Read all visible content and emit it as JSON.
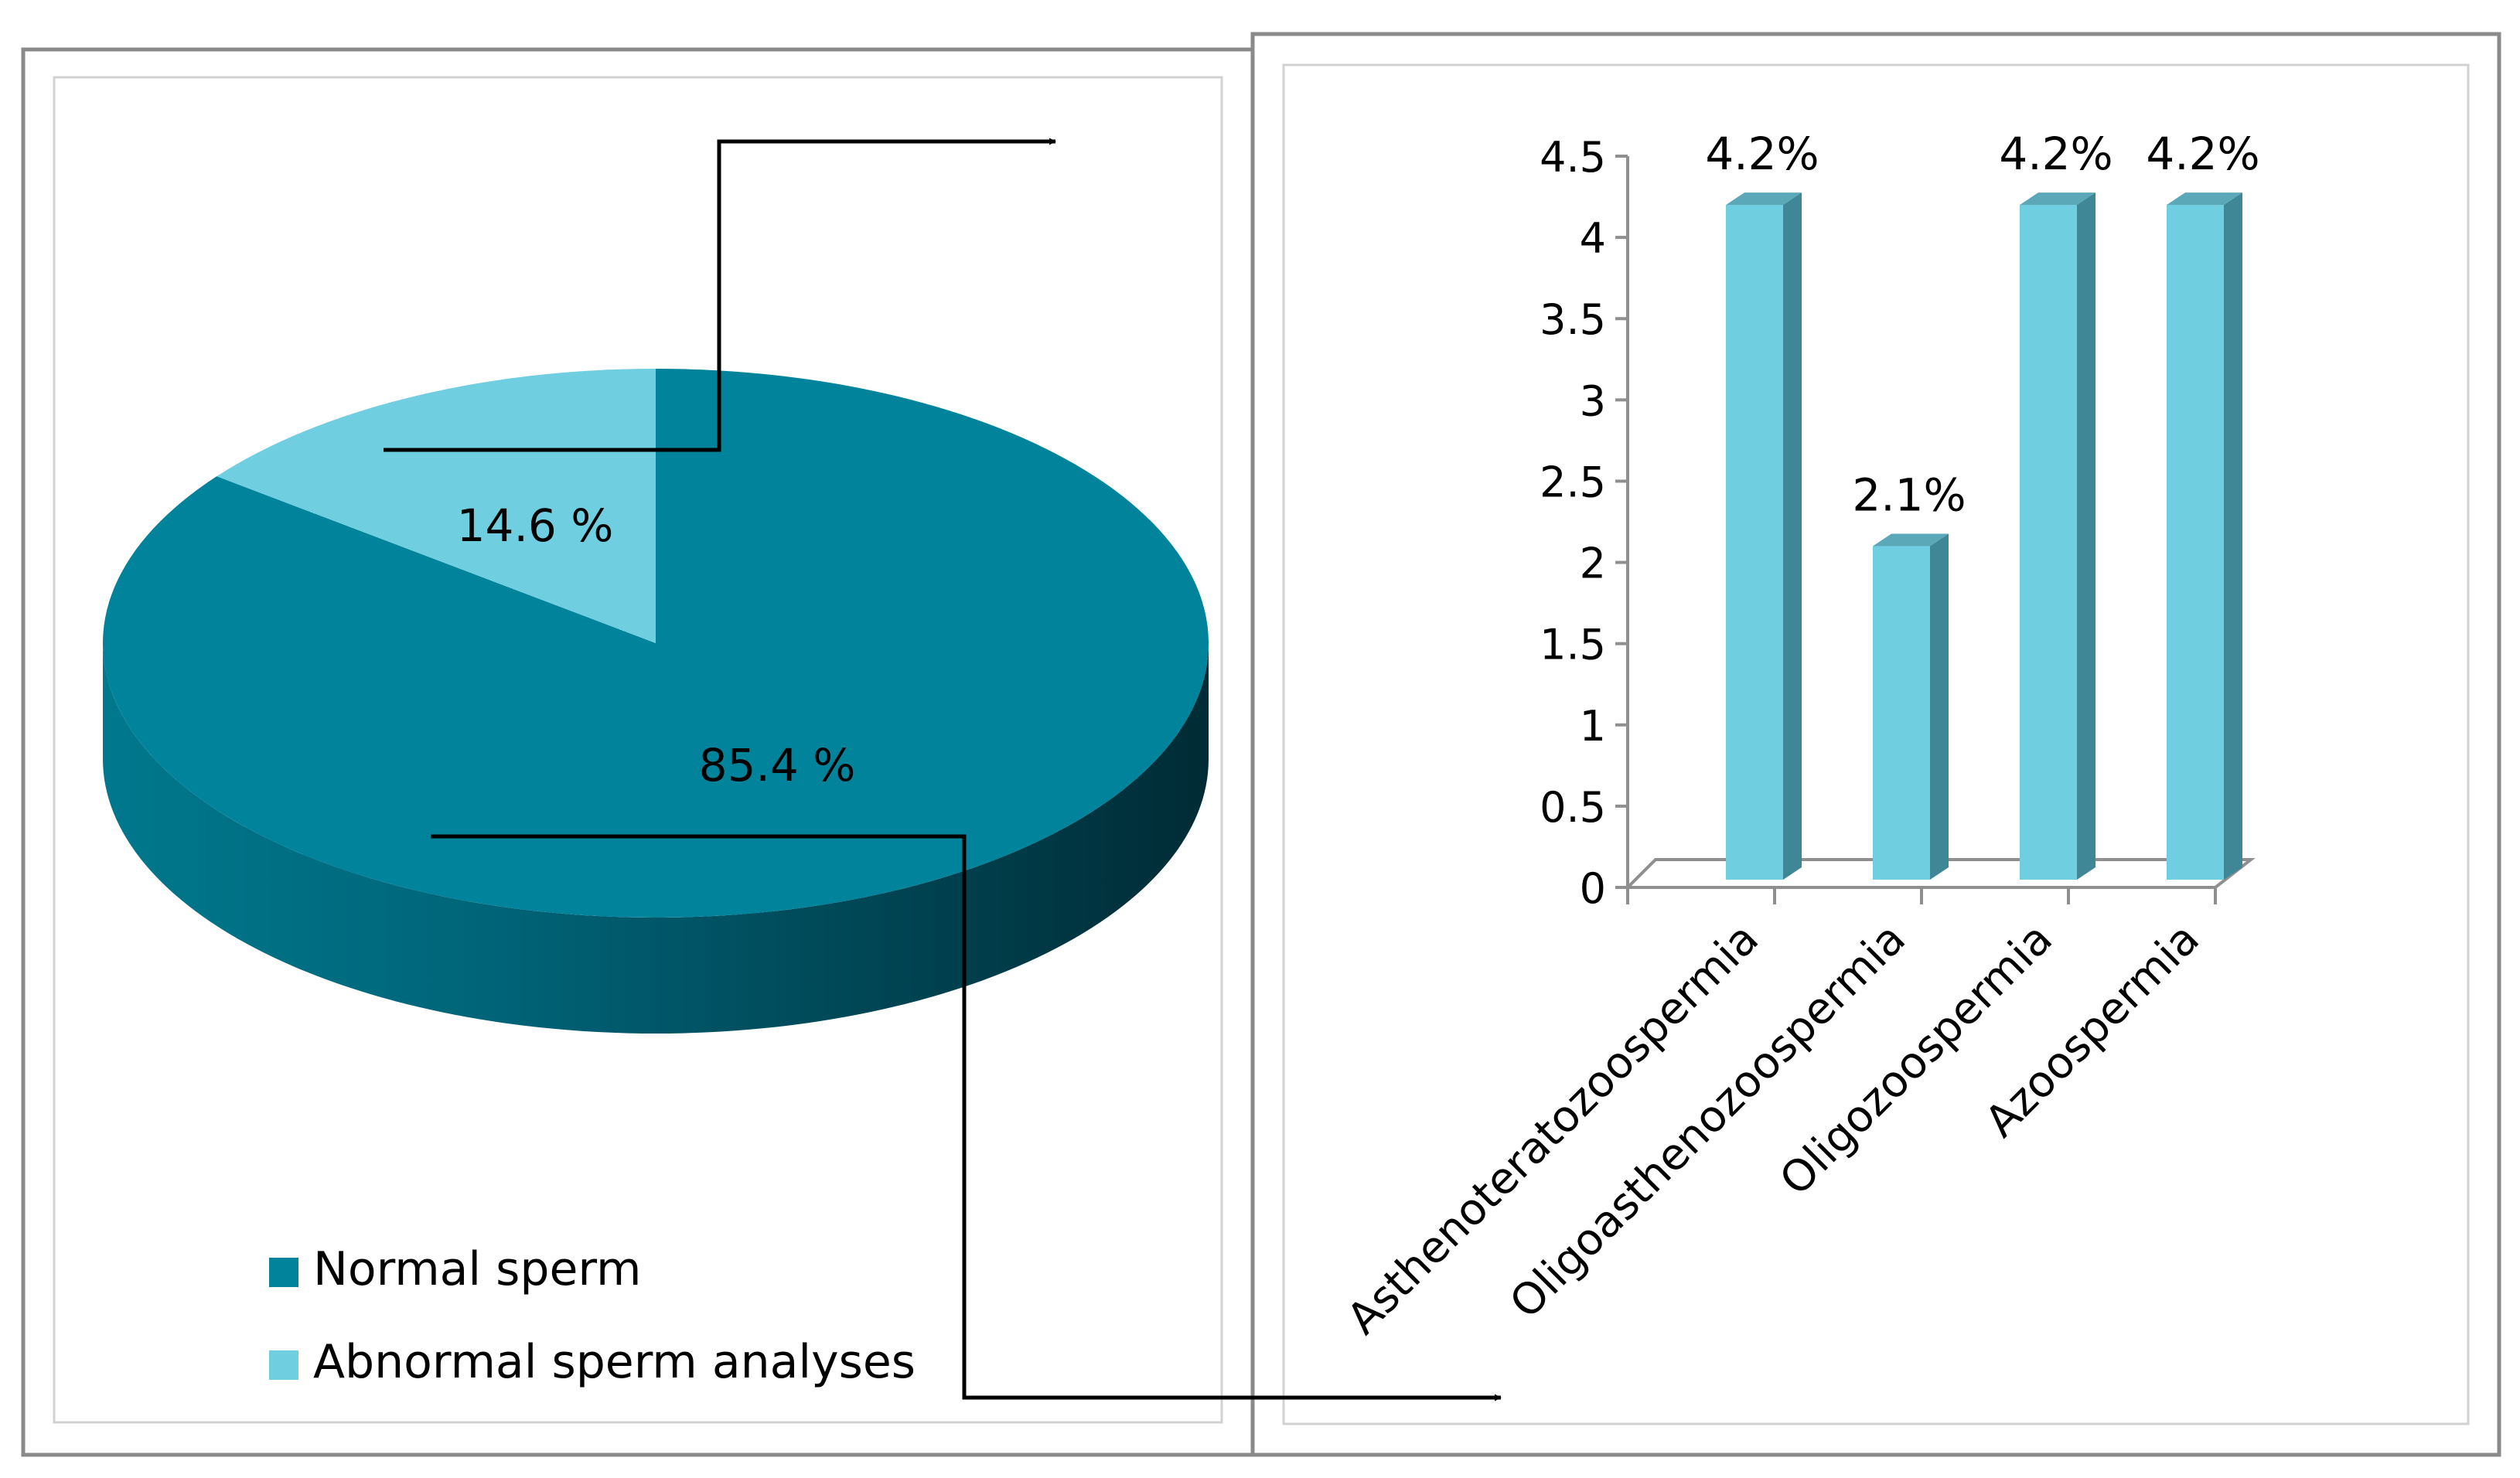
{
  "chart_data": [
    {
      "type": "pie",
      "labels": [
        "Normal sperm",
        "Abnormal sperm analyses"
      ],
      "values": [
        85.4,
        14.6
      ],
      "data_labels": [
        "85.4 %",
        "14.6 %"
      ],
      "colors": [
        "#00839b",
        "#6fcfe0"
      ],
      "legend": [
        {
          "label": "Normal sperm",
          "color": "#00839b"
        },
        {
          "label": "Abnormal sperm analyses",
          "color": "#6fcfe0"
        }
      ],
      "legend_position": "bottom-left",
      "style": "3d"
    },
    {
      "type": "bar",
      "categories": [
        "Asthenoteratozoospermia",
        "Oligoasthenozoospermia",
        "Oligozoospermia",
        "Azoospermia"
      ],
      "values": [
        4.2,
        2.1,
        4.2,
        4.2
      ],
      "data_labels": [
        "4.2%",
        "2.1%",
        "4.2%",
        "4.2%"
      ],
      "ylim": [
        0,
        4.5
      ],
      "yticks": [
        "0",
        "0.5",
        "1",
        "1.5",
        "2",
        "2.5",
        "3",
        "3.5",
        "4",
        "4.5"
      ],
      "bar_color": "#6fcfe0",
      "style": "3d"
    }
  ]
}
